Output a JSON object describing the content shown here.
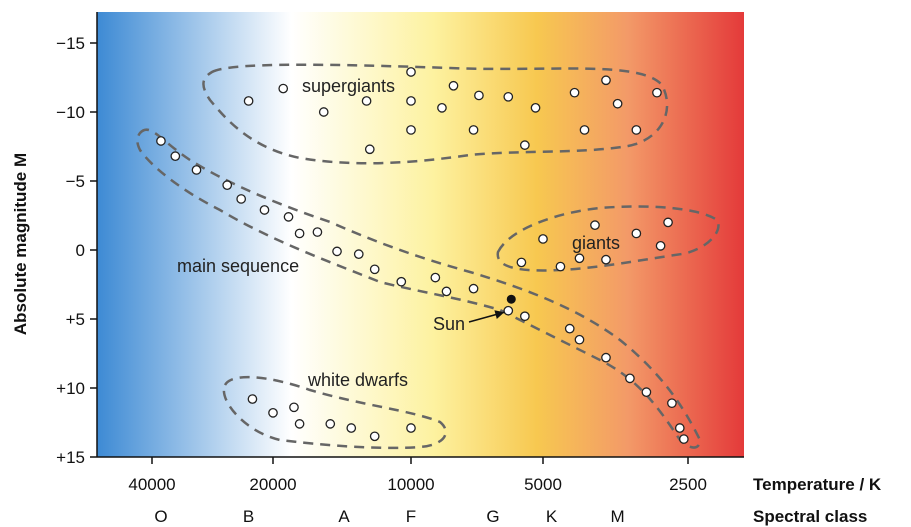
{
  "chart_data": {
    "type": "scatter",
    "title": "",
    "xlabel": "Temperature / K",
    "ylabel": "Absolute magnitude M",
    "secondary_xlabel": "Spectral class",
    "ylim": [
      -17,
      15
    ],
    "y_inverted": true,
    "x_scale": "log (inverted)",
    "x_ticks": [
      {
        "value": 40000,
        "label": "40000"
      },
      {
        "value": 20000,
        "label": "20000"
      },
      {
        "value": 10000,
        "label": "10000"
      },
      {
        "value": 5000,
        "label": "5000"
      },
      {
        "value": 2500,
        "label": "2500"
      }
    ],
    "y_ticks": [
      {
        "value": -15,
        "label": "−15"
      },
      {
        "value": -10,
        "label": "−10"
      },
      {
        "value": -5,
        "label": "−5"
      },
      {
        "value": 0,
        "label": "0"
      },
      {
        "value": 5,
        "label": "+5"
      },
      {
        "value": 10,
        "label": "+10"
      },
      {
        "value": 15,
        "label": "+15"
      }
    ],
    "spectral_classes": [
      {
        "label": "O",
        "temp": 38000
      },
      {
        "label": "B",
        "temp": 23000
      },
      {
        "label": "A",
        "temp": 14000
      },
      {
        "label": "F",
        "temp": 10000
      },
      {
        "label": "G",
        "temp": 6500
      },
      {
        "label": "K",
        "temp": 4800
      },
      {
        "label": "M",
        "temp": 3500
      }
    ],
    "background_gradient": [
      "#3d8ad4",
      "#ffffff",
      "#fdf2a0",
      "#f7c850",
      "#f39a68",
      "#e43a3a"
    ],
    "regions": [
      {
        "name": "supergiants",
        "label": "supergiants"
      },
      {
        "name": "main-sequence",
        "label": "main sequence"
      },
      {
        "name": "giants",
        "label": "giants"
      },
      {
        "name": "white-dwarfs",
        "label": "white dwarfs"
      }
    ],
    "sun": {
      "label": "Sun",
      "temp": 6000,
      "mag": 4.8
    },
    "series": [
      {
        "region": "supergiants",
        "points": [
          {
            "t": 23000,
            "m": -10.8
          },
          {
            "t": 19000,
            "m": -11.7
          },
          {
            "t": 15500,
            "m": -10.0
          },
          {
            "t": 12500,
            "m": -10.8
          },
          {
            "t": 12300,
            "m": -7.3
          },
          {
            "t": 10000,
            "m": -12.9
          },
          {
            "t": 10000,
            "m": -10.8
          },
          {
            "t": 10000,
            "m": -8.7
          },
          {
            "t": 8500,
            "m": -10.3
          },
          {
            "t": 8000,
            "m": -11.9
          },
          {
            "t": 7000,
            "m": -11.2
          },
          {
            "t": 7200,
            "m": -8.7
          },
          {
            "t": 6000,
            "m": -11.1
          },
          {
            "t": 5500,
            "m": -7.6
          },
          {
            "t": 5200,
            "m": -10.3
          },
          {
            "t": 4300,
            "m": -11.4
          },
          {
            "t": 4100,
            "m": -8.7
          },
          {
            "t": 3700,
            "m": -12.3
          },
          {
            "t": 3500,
            "m": -10.6
          },
          {
            "t": 3200,
            "m": -8.7
          },
          {
            "t": 2900,
            "m": -11.4
          }
        ]
      },
      {
        "region": "main-sequence",
        "points": [
          {
            "t": 38000,
            "m": -7.9
          },
          {
            "t": 35000,
            "m": -6.8
          },
          {
            "t": 31000,
            "m": -5.8
          },
          {
            "t": 26000,
            "m": -4.7
          },
          {
            "t": 24000,
            "m": -3.7
          },
          {
            "t": 21000,
            "m": -2.9
          },
          {
            "t": 18500,
            "m": -2.4
          },
          {
            "t": 17500,
            "m": -1.2
          },
          {
            "t": 16000,
            "m": -1.3
          },
          {
            "t": 14500,
            "m": 0.1
          },
          {
            "t": 13000,
            "m": 0.3
          },
          {
            "t": 12000,
            "m": 1.4
          },
          {
            "t": 10500,
            "m": 2.3
          },
          {
            "t": 8800,
            "m": 2.0
          },
          {
            "t": 8300,
            "m": 3.0
          },
          {
            "t": 7200,
            "m": 2.8
          },
          {
            "t": 6000,
            "m": 4.4
          },
          {
            "t": 5500,
            "m": 4.8
          },
          {
            "t": 4400,
            "m": 5.7
          },
          {
            "t": 4200,
            "m": 6.5
          },
          {
            "t": 3700,
            "m": 7.8
          },
          {
            "t": 3300,
            "m": 9.3
          },
          {
            "t": 3050,
            "m": 10.3
          },
          {
            "t": 2700,
            "m": 11.1
          },
          {
            "t": 2600,
            "m": 12.9
          },
          {
            "t": 2550,
            "m": 13.7
          }
        ]
      },
      {
        "region": "giants",
        "points": [
          {
            "t": 5600,
            "m": 0.9
          },
          {
            "t": 5000,
            "m": -0.8
          },
          {
            "t": 4600,
            "m": 1.2
          },
          {
            "t": 4200,
            "m": 0.6
          },
          {
            "t": 3900,
            "m": -1.8
          },
          {
            "t": 3700,
            "m": 0.7
          },
          {
            "t": 3200,
            "m": -1.2
          },
          {
            "t": 2850,
            "m": -0.3
          },
          {
            "t": 2750,
            "m": -2.0
          }
        ]
      },
      {
        "region": "white-dwarfs",
        "points": [
          {
            "t": 22500,
            "m": 10.8
          },
          {
            "t": 20000,
            "m": 11.8
          },
          {
            "t": 18000,
            "m": 11.4
          },
          {
            "t": 17500,
            "m": 12.6
          },
          {
            "t": 15000,
            "m": 12.6
          },
          {
            "t": 13500,
            "m": 12.9
          },
          {
            "t": 12000,
            "m": 13.5
          },
          {
            "t": 10000,
            "m": 12.9
          }
        ]
      }
    ]
  }
}
